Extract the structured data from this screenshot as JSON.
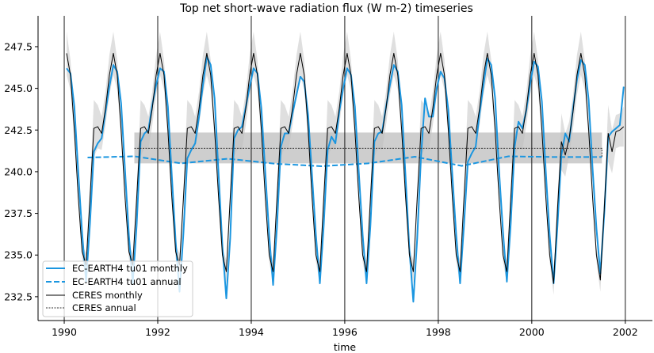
{
  "chart_data": {
    "type": "line",
    "title": "Top net short-wave radiation flux (W m-2) timeseries",
    "xlabel": "time",
    "ylabel": "",
    "xlim": [
      1989.44,
      2002.58
    ],
    "ylim": [
      231.07,
      249.35
    ],
    "xticks": [
      1990,
      1992,
      1994,
      1996,
      1998,
      2000,
      2002
    ],
    "xtick_labels": [
      "1990",
      "1992",
      "1994",
      "1996",
      "1998",
      "2000",
      "2002"
    ],
    "yticks": [
      232.5,
      235.0,
      237.5,
      240.0,
      242.5,
      245.0,
      247.5
    ],
    "ytick_labels": [
      "232.5",
      "235.0",
      "237.5",
      "240.0",
      "242.5",
      "245.0",
      "247.5"
    ],
    "vertical_lines_at": [
      1990,
      1992,
      1994,
      1996,
      1998,
      2000,
      2002
    ],
    "grid": false,
    "legend_placement": "lower-left",
    "colors": {
      "model": "#1b96e0",
      "obs": "#000000",
      "obs_band": "#d9d9d9",
      "obs_annual_band": "#bdbdbd"
    },
    "series": [
      {
        "name": "EC-EARTH4 tu01 monthly",
        "style": "solid",
        "resolution": "monthly",
        "values_by_year": {
          "1990": [
            246.2,
            245.9,
            243.9,
            240.0,
            236.3,
            233.4,
            236.9,
            241.2,
            241.7,
            242.0,
            243.6,
            245.1
          ],
          "1991": [
            246.4,
            246.0,
            244.1,
            240.1,
            236.2,
            233.3,
            236.8,
            241.8,
            242.3,
            242.5,
            244.0,
            245.2
          ],
          "1992": [
            246.2,
            246.0,
            243.9,
            239.8,
            235.8,
            232.8,
            236.3,
            240.8,
            241.3,
            241.7,
            243.3,
            245.2
          ],
          "1993": [
            246.9,
            246.4,
            244.4,
            239.9,
            235.5,
            232.4,
            236.0,
            242.0,
            242.5,
            242.7,
            243.9,
            245.1
          ],
          "1994": [
            246.2,
            245.9,
            243.8,
            240.0,
            236.2,
            233.2,
            236.7,
            241.5,
            242.3,
            242.3,
            243.5,
            244.6
          ],
          "1995": [
            245.7,
            245.4,
            243.4,
            239.8,
            236.2,
            233.3,
            236.8,
            241.3,
            242.1,
            241.7,
            243.6,
            245.0
          ],
          "1996": [
            246.2,
            245.8,
            243.9,
            240.0,
            236.2,
            233.3,
            236.8,
            241.8,
            242.3,
            242.4,
            243.9,
            245.2
          ],
          "1997": [
            246.4,
            246.0,
            244.0,
            239.7,
            235.3,
            232.2,
            236.0,
            241.0,
            244.4,
            243.3,
            243.3,
            245.0
          ],
          "1998": [
            246.0,
            245.6,
            243.7,
            239.8,
            236.2,
            233.3,
            236.8,
            240.6,
            241.1,
            241.5,
            243.5,
            245.2
          ],
          "1999": [
            246.8,
            246.4,
            244.4,
            240.1,
            236.4,
            233.4,
            236.9,
            241.5,
            243.0,
            242.6,
            243.7,
            245.3
          ],
          "2000": [
            246.6,
            246.3,
            244.2,
            240.0,
            236.2,
            233.3,
            236.8,
            241.0,
            242.3,
            241.8,
            243.8,
            245.5
          ],
          "2001": [
            246.7,
            246.4,
            244.3,
            240.2,
            236.6,
            233.9,
            237.5,
            242.1,
            242.4,
            242.6,
            242.8,
            245.1
          ]
        }
      },
      {
        "name": "EC-EARTH4 tu01 annual",
        "style": "dashed",
        "resolution": "annual",
        "years": [
          1990,
          1991,
          1992,
          1993,
          1994,
          1995,
          1996,
          1997,
          1998,
          1999,
          2000,
          2001
        ],
        "values": [
          240.85,
          240.92,
          240.5,
          240.78,
          240.48,
          240.33,
          240.5,
          240.9,
          240.35,
          240.92,
          240.88,
          240.88
        ]
      },
      {
        "name": "CERES monthly",
        "style": "solid-thin",
        "resolution": "monthly",
        "values_by_year": {
          "1990": [
            247.1,
            245.8,
            242.5,
            238.5,
            235.2,
            234.4,
            238.4,
            242.6,
            242.7,
            242.3,
            243.8,
            245.8
          ],
          "1991": [
            247.1,
            245.8,
            242.5,
            238.5,
            235.2,
            234.4,
            238.4,
            242.6,
            242.7,
            242.3,
            243.8,
            245.8
          ],
          "1992": [
            247.1,
            245.8,
            242.5,
            238.5,
            235.2,
            234.4,
            238.4,
            242.6,
            242.7,
            242.3,
            243.8,
            245.8
          ],
          "1993": [
            247.1,
            245.8,
            242.5,
            238.5,
            235.0,
            234.0,
            238.4,
            242.6,
            242.7,
            242.3,
            243.8,
            245.8
          ],
          "1994": [
            247.1,
            245.8,
            242.5,
            238.5,
            235.0,
            234.0,
            238.4,
            242.6,
            242.7,
            242.3,
            243.8,
            245.8
          ],
          "1995": [
            247.1,
            245.8,
            242.5,
            238.5,
            235.0,
            234.0,
            238.4,
            242.6,
            242.7,
            242.3,
            243.8,
            245.8
          ],
          "1996": [
            247.1,
            245.8,
            242.5,
            238.5,
            235.0,
            234.0,
            238.4,
            242.6,
            242.7,
            242.3,
            243.8,
            245.8
          ],
          "1997": [
            247.1,
            245.8,
            242.5,
            238.5,
            235.0,
            234.0,
            238.4,
            242.6,
            242.7,
            242.3,
            243.8,
            245.8
          ],
          "1998": [
            247.1,
            245.8,
            242.5,
            238.5,
            235.0,
            234.0,
            238.4,
            242.6,
            242.7,
            242.3,
            243.8,
            245.8
          ],
          "1999": [
            247.1,
            245.8,
            242.5,
            238.5,
            235.0,
            234.0,
            238.4,
            242.6,
            242.7,
            242.3,
            243.8,
            245.8
          ],
          "2000": [
            247.1,
            245.8,
            242.5,
            238.5,
            235.0,
            233.3,
            237.8,
            241.8,
            241.0,
            242.0,
            243.6,
            245.8
          ],
          "2001": [
            247.1,
            245.8,
            242.5,
            238.5,
            235.0,
            233.5,
            237.8,
            242.3,
            241.2,
            242.4,
            242.5,
            242.7
          ]
        },
        "spread_by_month": [
          1.3,
          0.9,
          0.6,
          0.4,
          0.4,
          0.7,
          0.6,
          1.7,
          1.3,
          1.0,
          1.0,
          1.2
        ]
      },
      {
        "name": "CERES annual",
        "style": "dotted",
        "resolution": "annual",
        "years": [
          1991,
          1992,
          1993,
          1994,
          1995,
          1996,
          1997,
          1998,
          1999,
          2000,
          2001,
          2001
        ],
        "values": [
          241.4,
          241.4,
          241.4,
          241.4,
          241.4,
          241.4,
          241.4,
          241.4,
          241.4,
          241.4,
          241.4,
          240.9
        ],
        "band": [
          240.5,
          242.35
        ]
      }
    ]
  }
}
